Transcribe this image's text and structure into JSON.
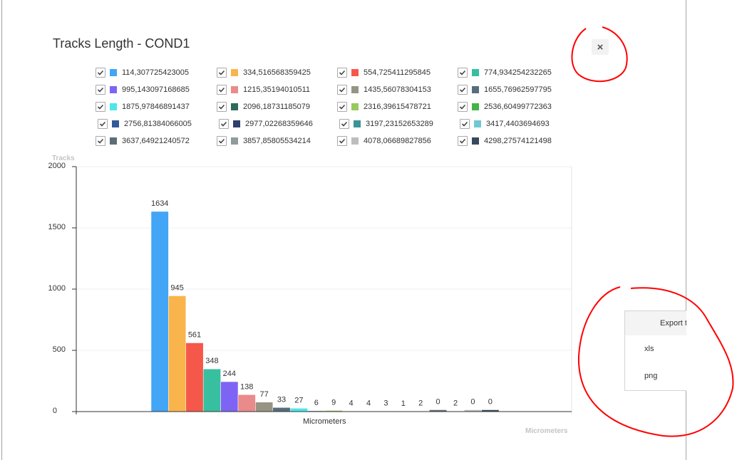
{
  "window": {
    "title": "Tracks Length - COND1",
    "close_label": "×"
  },
  "export_menu": {
    "header": "Export t",
    "items": [
      {
        "label": "xls"
      },
      {
        "label": "png"
      }
    ]
  },
  "legend": [
    {
      "label": "114,307725423005",
      "color": "#42a5f5",
      "checked": true
    },
    {
      "label": "334,516568359425",
      "color": "#f9b44b",
      "checked": true
    },
    {
      "label": "554,725411295845",
      "color": "#f5584a",
      "checked": true
    },
    {
      "label": "774,934254232265",
      "color": "#37bf9f",
      "checked": true
    },
    {
      "label": "995,143097168685",
      "color": "#7e64f5",
      "checked": true
    },
    {
      "label": "1215,35194010511",
      "color": "#ea8a8b",
      "checked": true
    },
    {
      "label": "1435,56078304153",
      "color": "#989483",
      "checked": true
    },
    {
      "label": "1655,76962597795",
      "color": "#566d7b",
      "checked": true
    },
    {
      "label": "1875,97846891437",
      "color": "#4ee6ea",
      "checked": true
    },
    {
      "label": "2096,18731185079",
      "color": "#2e6a5c",
      "checked": true
    },
    {
      "label": "2316,39615478721",
      "color": "#97c95d",
      "checked": true
    },
    {
      "label": "2536,60499772363",
      "color": "#47b347",
      "checked": true
    },
    {
      "label": "2756,81384066005",
      "color": "#33599b",
      "checked": true
    },
    {
      "label": "2977,02268359646",
      "color": "#2f3e6e",
      "checked": true
    },
    {
      "label": "3197,23152653289",
      "color": "#3a9496",
      "checked": true
    },
    {
      "label": "3417,4403694693",
      "color": "#72c8d2",
      "checked": true
    },
    {
      "label": "3637,64921240572",
      "color": "#5f6c75",
      "checked": true
    },
    {
      "label": "3857,85805534214",
      "color": "#8e9d9b",
      "checked": true
    },
    {
      "label": "4078,06689827856",
      "color": "#bdbdbd",
      "checked": true
    },
    {
      "label": "4298,27574121498",
      "color": "#374a5c",
      "checked": true
    }
  ],
  "chart_data": {
    "type": "bar",
    "title": "Tracks Length - COND1",
    "xlabel": "Micrometers",
    "ylabel": "Tracks",
    "categories": [
      "Micrometers"
    ],
    "series": [
      {
        "name": "114,307725423005",
        "values": [
          1634
        ]
      },
      {
        "name": "334,516568359425",
        "values": [
          945
        ]
      },
      {
        "name": "554,725411295845",
        "values": [
          561
        ]
      },
      {
        "name": "774,934254232265",
        "values": [
          348
        ]
      },
      {
        "name": "995,143097168685",
        "values": [
          244
        ]
      },
      {
        "name": "1215,35194010511",
        "values": [
          138
        ]
      },
      {
        "name": "1435,56078304153",
        "values": [
          77
        ]
      },
      {
        "name": "1655,76962597795",
        "values": [
          33
        ]
      },
      {
        "name": "1875,97846891437",
        "values": [
          27
        ]
      },
      {
        "name": "2096,18731185079",
        "values": [
          6
        ]
      },
      {
        "name": "2316,39615478721",
        "values": [
          9
        ]
      },
      {
        "name": "2536,60499772363",
        "values": [
          4
        ]
      },
      {
        "name": "2756,81384066005",
        "values": [
          4
        ]
      },
      {
        "name": "2977,02268359646",
        "values": [
          3
        ]
      },
      {
        "name": "3197,23152653289",
        "values": [
          1
        ]
      },
      {
        "name": "3417,4403694693",
        "values": [
          2
        ]
      },
      {
        "name": "3637,64921240572",
        "values": [
          0
        ]
      },
      {
        "name": "3857,85805534214",
        "values": [
          2
        ]
      },
      {
        "name": "4078,06689827856",
        "values": [
          0
        ]
      },
      {
        "name": "4298,27574121498",
        "values": [
          0
        ]
      }
    ],
    "ylim": [
      0,
      2000
    ],
    "yticks": [
      "0",
      "500",
      "1000",
      "1500",
      "2000"
    ],
    "grid": true,
    "legend_position": "top"
  }
}
